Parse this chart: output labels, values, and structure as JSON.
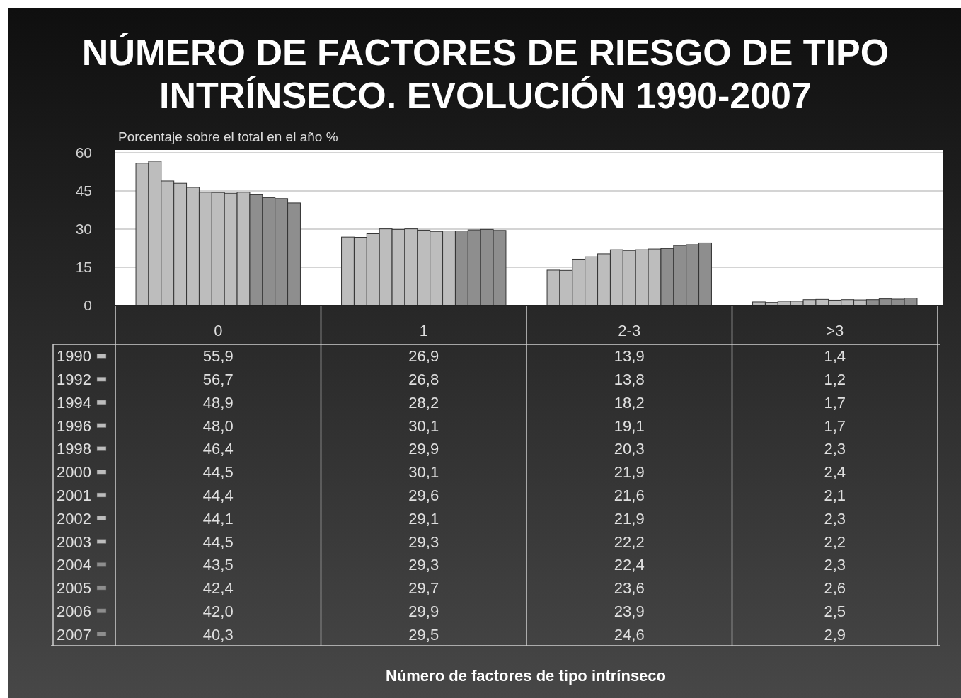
{
  "chart_data": {
    "type": "bar",
    "title": "NÚMERO DE FACTORES DE RIESGO DE TIPO INTRÍNSECO. EVOLUCIÓN 1990-2007",
    "ylabel": "Porcentaje sobre el total en el año %",
    "annotations": [
      "Número de factores de tipo intrínseco"
    ],
    "categories": [
      "0",
      "1",
      "2-3",
      ">3"
    ],
    "series": [
      {
        "name": "1990",
        "color": "#bdbdbd",
        "values": [
          55.9,
          26.9,
          13.9,
          1.4
        ],
        "value_labels": [
          "55,9",
          "26,9",
          "13,9",
          "1,4"
        ]
      },
      {
        "name": "1992",
        "color": "#bdbdbd",
        "values": [
          56.7,
          26.8,
          13.8,
          1.2
        ],
        "value_labels": [
          "56,7",
          "26,8",
          "13,8",
          "1,2"
        ]
      },
      {
        "name": "1994",
        "color": "#bdbdbd",
        "values": [
          48.9,
          28.2,
          18.2,
          1.7
        ],
        "value_labels": [
          "48,9",
          "28,2",
          "18,2",
          "1,7"
        ]
      },
      {
        "name": "1996",
        "color": "#bdbdbd",
        "values": [
          48.0,
          30.1,
          19.1,
          1.7
        ],
        "value_labels": [
          "48,0",
          "30,1",
          "19,1",
          "1,7"
        ]
      },
      {
        "name": "1998",
        "color": "#bdbdbd",
        "values": [
          46.4,
          29.9,
          20.3,
          2.3
        ],
        "value_labels": [
          "46,4",
          "29,9",
          "20,3",
          "2,3"
        ]
      },
      {
        "name": "2000",
        "color": "#bdbdbd",
        "values": [
          44.5,
          30.1,
          21.9,
          2.4
        ],
        "value_labels": [
          "44,5",
          "30,1",
          "21,9",
          "2,4"
        ]
      },
      {
        "name": "2001",
        "color": "#bdbdbd",
        "values": [
          44.4,
          29.6,
          21.6,
          2.1
        ],
        "value_labels": [
          "44,4",
          "29,6",
          "21,6",
          "2,1"
        ]
      },
      {
        "name": "2002",
        "color": "#bdbdbd",
        "values": [
          44.1,
          29.1,
          21.9,
          2.3
        ],
        "value_labels": [
          "44,1",
          "29,1",
          "21,9",
          "2,3"
        ]
      },
      {
        "name": "2003",
        "color": "#bdbdbd",
        "values": [
          44.5,
          29.3,
          22.2,
          2.2
        ],
        "value_labels": [
          "44,5",
          "29,3",
          "22,2",
          "2,2"
        ]
      },
      {
        "name": "2004",
        "color": "#8e8e8e",
        "values": [
          43.5,
          29.3,
          22.4,
          2.3
        ],
        "value_labels": [
          "43,5",
          "29,3",
          "22,4",
          "2,3"
        ]
      },
      {
        "name": "2005",
        "color": "#8e8e8e",
        "values": [
          42.4,
          29.7,
          23.6,
          2.6
        ],
        "value_labels": [
          "42,4",
          "29,7",
          "23,6",
          "2,6"
        ]
      },
      {
        "name": "2006",
        "color": "#8e8e8e",
        "values": [
          42.0,
          29.9,
          23.9,
          2.5
        ],
        "value_labels": [
          "42,0",
          "29,9",
          "23,9",
          "2,5"
        ]
      },
      {
        "name": "2007",
        "color": "#8e8e8e",
        "values": [
          40.3,
          29.5,
          24.6,
          2.9
        ],
        "value_labels": [
          "40,3",
          "29,5",
          "24,6",
          "2,9"
        ]
      }
    ],
    "ylim": [
      0,
      60
    ],
    "yticks": [
      0,
      15,
      30,
      45,
      60
    ],
    "grid": "y",
    "legend": "bottom"
  }
}
